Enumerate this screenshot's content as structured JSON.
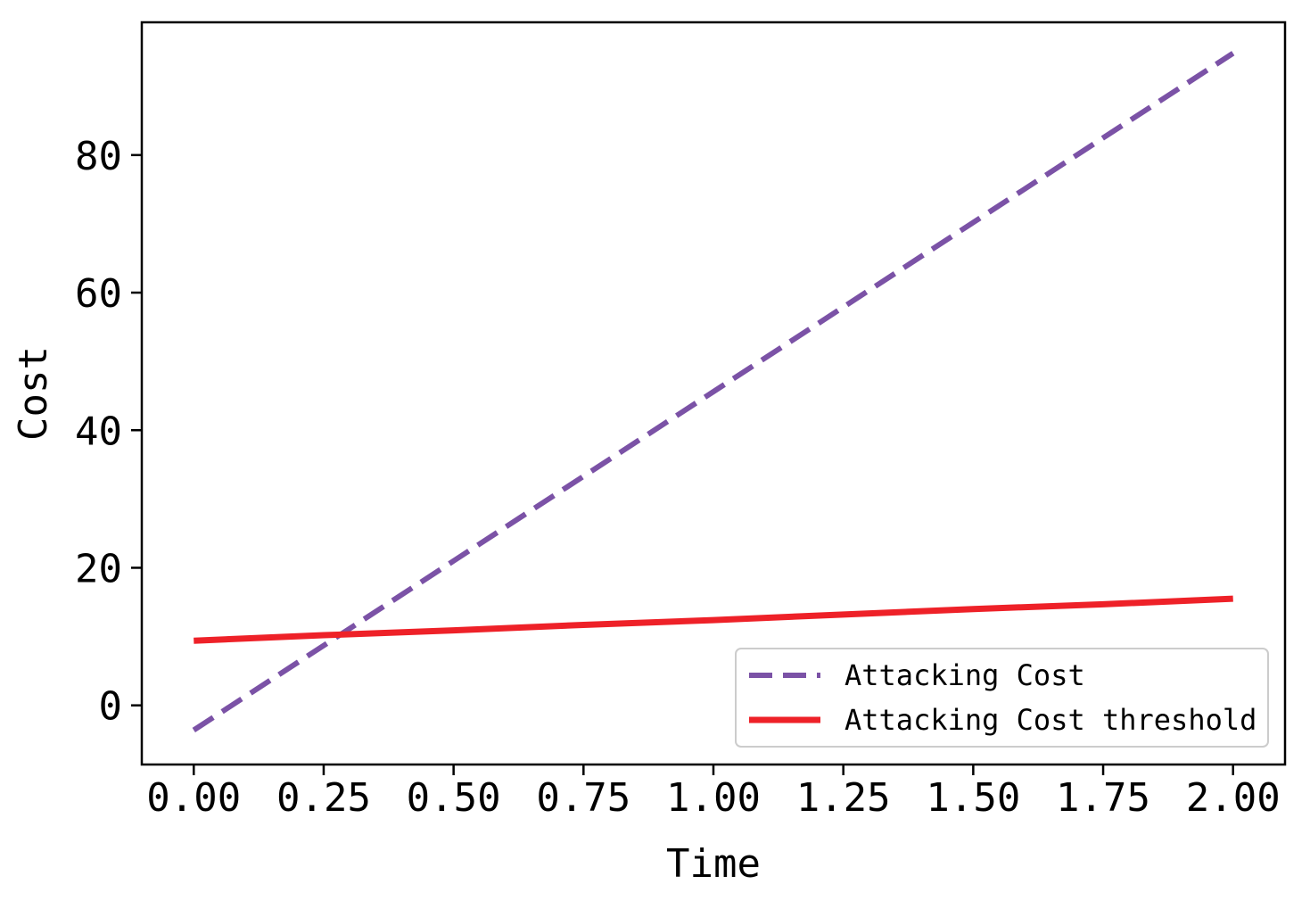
{
  "chart_data": {
    "type": "line",
    "title": "",
    "xlabel": "Time",
    "ylabel": "Cost",
    "xlim": [
      -0.1,
      2.1
    ],
    "ylim": [
      -8.6,
      99.3
    ],
    "x_ticks": [
      0.0,
      0.25,
      0.5,
      0.75,
      1.0,
      1.25,
      1.5,
      1.75,
      2.0
    ],
    "x_tick_labels": [
      "0.00",
      "0.25",
      "0.50",
      "0.75",
      "1.00",
      "1.25",
      "1.50",
      "1.75",
      "2.00"
    ],
    "y_ticks": [
      0,
      20,
      40,
      60,
      80
    ],
    "y_tick_labels": [
      "0",
      "20",
      "40",
      "60",
      "80"
    ],
    "grid": false,
    "legend_position": "lower-right",
    "series": [
      {
        "name": "Attacking Cost",
        "style": "dashed",
        "color": "#7B52A6",
        "x": [
          0.0,
          0.25,
          0.5,
          0.75,
          1.0,
          1.25,
          1.5,
          1.75,
          2.0
        ],
        "y": [
          -3.6,
          8.7,
          21.0,
          33.3,
          45.6,
          57.9,
          70.2,
          82.5,
          94.8
        ]
      },
      {
        "name": "Attacking Cost threshold",
        "style": "solid",
        "color": "#EE2128",
        "x": [
          0.0,
          0.25,
          0.5,
          0.75,
          1.0,
          1.25,
          1.5,
          1.75,
          2.0
        ],
        "y": [
          9.4,
          10.2,
          10.9,
          11.7,
          12.4,
          13.2,
          14.0,
          14.7,
          15.5
        ]
      }
    ]
  }
}
